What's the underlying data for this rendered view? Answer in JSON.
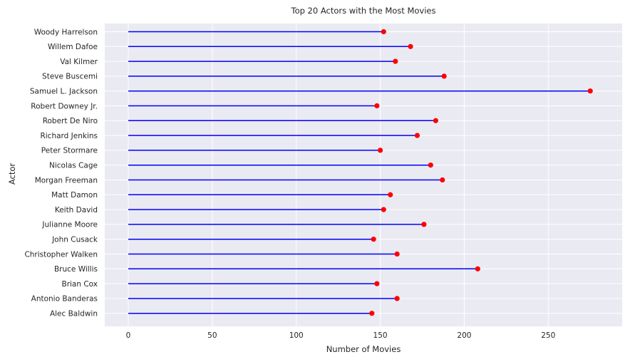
{
  "chart_data": {
    "type": "lollipop",
    "title": "Top 20 Actors with the Most Movies",
    "xlabel": "Number of Movies",
    "ylabel": "Actor",
    "xlim": [
      -14,
      294
    ],
    "xticks": [
      0,
      50,
      100,
      150,
      200,
      250
    ],
    "grid": true,
    "colors": {
      "background": "#EAEAF2",
      "stem": "#0000ff",
      "marker": "#ff0000",
      "grid": "#ffffff"
    },
    "categories": [
      "Woody Harrelson",
      "Willem Dafoe",
      "Val Kilmer",
      "Steve Buscemi",
      "Samuel L. Jackson",
      "Robert Downey Jr.",
      "Robert De Niro",
      "Richard Jenkins",
      "Peter Stormare",
      "Nicolas Cage",
      "Morgan Freeman",
      "Matt Damon",
      "Keith David",
      "Julianne Moore",
      "John Cusack",
      "Christopher Walken",
      "Bruce Willis",
      "Brian Cox",
      "Antonio Banderas",
      "Alec Baldwin"
    ],
    "values": [
      152,
      168,
      159,
      188,
      275,
      148,
      183,
      172,
      150,
      180,
      187,
      156,
      152,
      176,
      146,
      160,
      208,
      148,
      160,
      145
    ]
  }
}
